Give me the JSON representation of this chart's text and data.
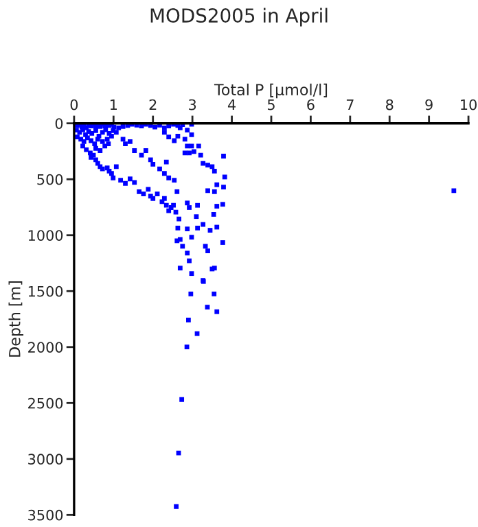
{
  "chart_data": {
    "type": "scatter",
    "title": "MODS2005 in April",
    "xlabel": "Total P [µmol/l]",
    "ylabel": "Depth [m]",
    "xlim": [
      0,
      10
    ],
    "xticks": [
      0,
      1,
      2,
      3,
      4,
      5,
      6,
      7,
      8,
      9,
      10
    ],
    "ylim": [
      3500,
      0
    ],
    "yticks": [
      0,
      500,
      1000,
      1500,
      2000,
      2500,
      3000,
      3500
    ],
    "grid": false,
    "marker": "square",
    "series": [
      {
        "color": "#0000ff",
        "x": [
          0.08,
          0.14,
          0.2,
          0.25,
          0.31,
          0.37,
          0.43,
          0.49,
          0.55,
          0.6,
          0.66,
          0.72,
          0.78,
          0.89,
          0.95,
          1.01,
          0.06,
          0.14,
          0.22,
          0.29,
          0.37,
          0.45,
          0.55,
          0.63,
          0.72,
          0.8,
          0.89,
          0.99,
          0.08,
          0.17,
          0.25,
          0.34,
          0.43,
          0.52,
          0.6,
          0.72,
          0.84,
          0.95,
          0.22,
          0.31,
          0.41,
          0.49,
          0.55,
          0.66,
          0.78,
          0.87,
          1.07,
          1.13,
          1.24,
          1.36,
          1.47,
          1.59,
          1.71,
          1.82,
          1.94,
          2.05,
          2.17,
          2.29,
          2.4,
          2.52,
          2.63,
          2.75,
          2.98,
          0.43,
          0.55,
          0.6,
          0.66,
          0.72,
          0.84,
          0.89,
          0.95,
          0.99,
          1.07,
          1.18,
          1.3,
          1.42,
          1.53,
          1.65,
          1.76,
          1.88,
          1.94,
          2.0,
          2.11,
          2.23,
          2.29,
          2.34,
          2.4,
          2.46,
          2.52,
          2.58,
          2.66,
          2.63,
          2.69,
          2.61,
          2.75,
          2.87,
          2.92,
          2.69,
          2.98,
          1.24,
          1.3,
          1.42,
          1.53,
          1.71,
          1.82,
          1.94,
          2.0,
          2.17,
          2.29,
          2.34,
          2.4,
          2.54,
          2.61,
          2.87,
          2.92,
          3.13,
          3.1,
          2.87,
          2.98,
          3.13,
          3.27,
          3.45,
          3.62,
          3.33,
          3.39,
          3.5,
          3.27,
          3.56,
          2.29,
          2.4,
          2.54,
          2.63,
          2.81,
          2.87,
          2.92,
          2.81,
          2.98,
          3.04,
          3.16,
          3.21,
          3.27,
          3.39,
          3.5,
          3.56,
          3.79,
          3.82,
          3.62,
          3.56,
          3.79,
          3.39,
          3.62,
          3.77,
          3.54,
          3.77,
          2.87,
          2.98,
          2.69,
          9.63,
          3.28,
          2.96,
          3.55,
          3.38,
          3.62,
          2.9,
          3.12,
          2.86,
          2.73,
          2.65,
          2.59
        ],
        "values": [
          20,
          8,
          33,
          16,
          41,
          12,
          24,
          8,
          37,
          16,
          28,
          8,
          24,
          20,
          8,
          33,
          61,
          81,
          57,
          102,
          73,
          90,
          65,
          114,
          81,
          57,
          90,
          65,
          122,
          142,
          163,
          130,
          155,
          183,
          142,
          163,
          142,
          114,
          204,
          236,
          265,
          285,
          224,
          244,
          204,
          183,
          81,
          41,
          28,
          20,
          8,
          16,
          24,
          8,
          20,
          33,
          16,
          41,
          24,
          8,
          20,
          12,
          8,
          305,
          326,
          358,
          387,
          407,
          399,
          427,
          448,
          488,
          387,
          509,
          537,
          497,
          529,
          611,
          631,
          590,
          651,
          672,
          631,
          700,
          672,
          733,
          781,
          753,
          733,
          794,
          855,
          936,
          1038,
          1050,
          1099,
          1160,
          1229,
          1294,
          1343,
          142,
          183,
          163,
          244,
          285,
          244,
          326,
          366,
          407,
          448,
          346,
          488,
          509,
          611,
          712,
          753,
          733,
          834,
          944,
          1018,
          936,
          904,
          956,
          928,
          1099,
          1140,
          1302,
          1404,
          1294,
          81,
          122,
          155,
          114,
          142,
          204,
          265,
          265,
          204,
          252,
          204,
          285,
          358,
          374,
          387,
          427,
          293,
          480,
          549,
          611,
          570,
          602,
          741,
          724,
          814,
          1066,
          61,
          102,
          41,
          602,
          1414,
          1525,
          1525,
          1643,
          1684,
          1758,
          1880,
          1999,
          2469,
          2947,
          3426
        ]
      }
    ]
  }
}
